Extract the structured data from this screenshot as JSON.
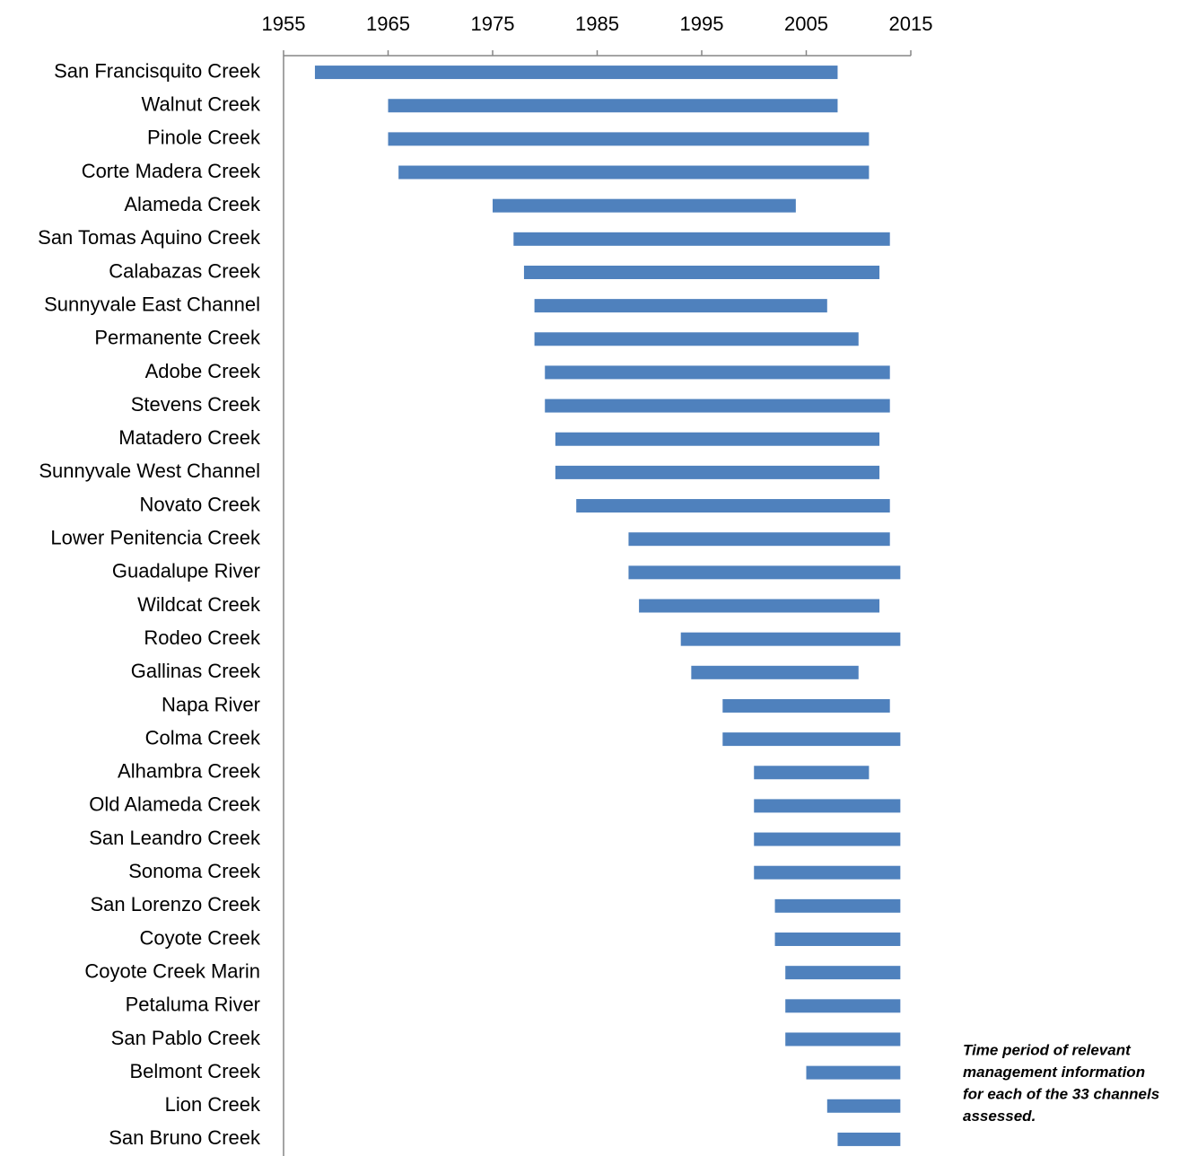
{
  "chart_data": {
    "type": "floating-bar",
    "categories": [
      "San Francisquito Creek",
      "Walnut Creek",
      "Pinole Creek",
      "Corte Madera Creek",
      "Alameda Creek",
      "San Tomas Aquino Creek",
      "Calabazas Creek",
      "Sunnyvale East Channel",
      "Permanente Creek",
      "Adobe Creek",
      "Stevens Creek",
      "Matadero Creek",
      "Sunnyvale West Channel",
      "Novato Creek",
      "Lower Penitencia Creek",
      "Guadalupe River",
      "Wildcat Creek",
      "Rodeo Creek",
      "Gallinas Creek",
      "Napa River",
      "Colma Creek",
      "Alhambra Creek",
      "Old Alameda Creek",
      "San Leandro Creek",
      "Sonoma Creek",
      "San Lorenzo Creek",
      "Coyote Creek",
      "Coyote Creek Marin",
      "Petaluma River",
      "San Pablo Creek",
      "Belmont Creek",
      "Lion Creek",
      "San Bruno Creek"
    ],
    "starts": [
      1958,
      1965,
      1965,
      1966,
      1975,
      1977,
      1978,
      1979,
      1979,
      1980,
      1980,
      1981,
      1981,
      1983,
      1988,
      1988,
      1989,
      1993,
      1994,
      1997,
      1997,
      2000,
      2000,
      2000,
      2000,
      2002,
      2002,
      2003,
      2003,
      2003,
      2005,
      2007,
      2008
    ],
    "ends": [
      2008,
      2008,
      2011,
      2011,
      2004,
      2013,
      2012,
      2007,
      2010,
      2013,
      2013,
      2012,
      2012,
      2013,
      2013,
      2014,
      2012,
      2014,
      2010,
      2013,
      2014,
      2011,
      2014,
      2014,
      2014,
      2014,
      2014,
      2014,
      2014,
      2014,
      2014,
      2014,
      2014
    ],
    "color": "#4f81bd",
    "xlim": [
      1955,
      2015
    ],
    "xticks": [
      1955,
      1965,
      1975,
      1985,
      1995,
      2005,
      2015
    ],
    "annotation": [
      "Time period of relevant",
      "management information",
      "for each of the 33 channels",
      "assessed."
    ]
  }
}
